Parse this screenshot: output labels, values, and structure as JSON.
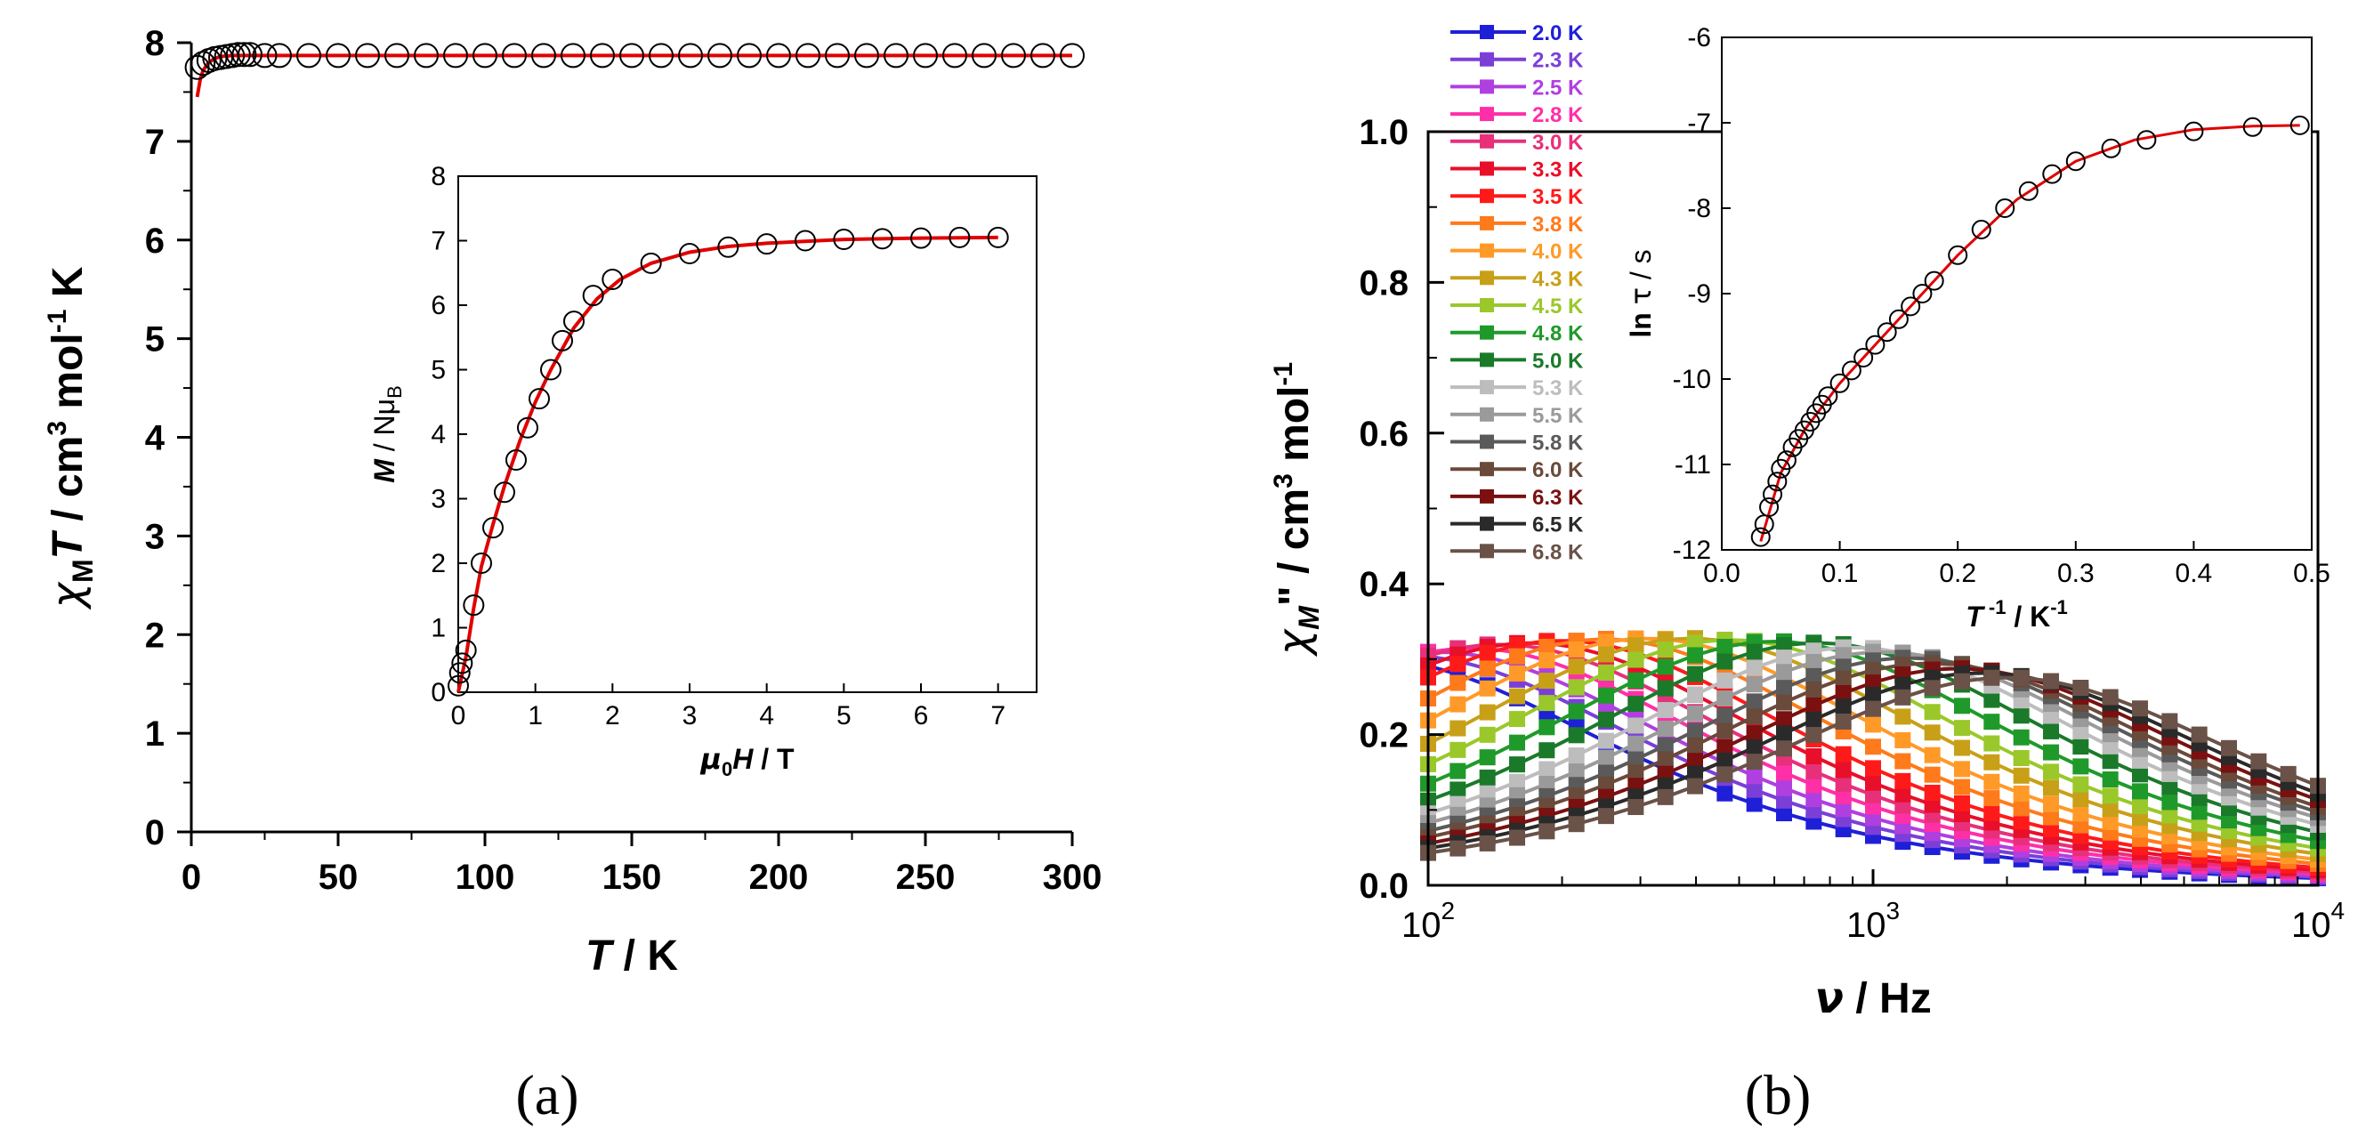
{
  "chart_data": [
    {
      "panel": "(a)",
      "type": "scatter",
      "xlabel": "T / K",
      "ylabel": "χ_M T / cm^3 mol^-1 K",
      "xlim": [
        0,
        300
      ],
      "ylim": [
        0,
        8
      ],
      "xticks": [
        "0",
        "50",
        "100",
        "150",
        "200",
        "250",
        "300"
      ],
      "yticks": [
        "0",
        "1",
        "2",
        "3",
        "4",
        "5",
        "6",
        "7",
        "8"
      ],
      "markers": "open circles (black)",
      "fit": "red line",
      "points": {
        "x": [
          2,
          4,
          6,
          8,
          10,
          12,
          14,
          16,
          18,
          20,
          25,
          30,
          40,
          50,
          60,
          70,
          80,
          90,
          100,
          110,
          120,
          130,
          140,
          150,
          160,
          170,
          180,
          190,
          200,
          210,
          220,
          230,
          240,
          250,
          260,
          270,
          280,
          290,
          300
        ],
        "y": [
          7.75,
          7.79,
          7.82,
          7.84,
          7.85,
          7.86,
          7.87,
          7.88,
          7.88,
          7.88,
          7.87,
          7.87,
          7.87,
          7.87,
          7.87,
          7.87,
          7.87,
          7.87,
          7.87,
          7.87,
          7.87,
          7.87,
          7.87,
          7.87,
          7.87,
          7.87,
          7.87,
          7.87,
          7.87,
          7.87,
          7.87,
          7.87,
          7.87,
          7.87,
          7.87,
          7.87,
          7.87,
          7.87,
          7.87
        ]
      },
      "fit_line": {
        "x": [
          2,
          3,
          4,
          6,
          8,
          10,
          14,
          20,
          30,
          50,
          100,
          150,
          200,
          250,
          300
        ],
        "y": [
          7.45,
          7.62,
          7.72,
          7.8,
          7.84,
          7.86,
          7.87,
          7.87,
          7.87,
          7.87,
          7.87,
          7.87,
          7.87,
          7.87,
          7.87
        ]
      },
      "inset": {
        "type": "scatter",
        "xlabel": "μ0H / T",
        "ylabel": "M / NμB",
        "xlim": [
          0,
          7.5
        ],
        "ylim": [
          0,
          8
        ],
        "xticks": [
          "0",
          "1",
          "2",
          "3",
          "4",
          "5",
          "6",
          "7"
        ],
        "yticks": [
          "0",
          "1",
          "2",
          "3",
          "4",
          "5",
          "6",
          "7",
          "8"
        ],
        "points": {
          "x": [
            0.0,
            0.02,
            0.05,
            0.1,
            0.2,
            0.3,
            0.45,
            0.6,
            0.75,
            0.9,
            1.05,
            1.2,
            1.35,
            1.5,
            1.75,
            2.0,
            2.5,
            3.0,
            3.5,
            4.0,
            4.5,
            5.0,
            5.5,
            6.0,
            6.5,
            7.0
          ],
          "y": [
            0.1,
            0.3,
            0.45,
            0.65,
            1.35,
            2.0,
            2.55,
            3.1,
            3.6,
            4.1,
            4.55,
            5.0,
            5.45,
            5.75,
            6.15,
            6.4,
            6.65,
            6.8,
            6.9,
            6.95,
            7.0,
            7.02,
            7.03,
            7.04,
            7.05,
            7.05
          ]
        },
        "fit_line": {
          "x": [
            0,
            0.1,
            0.2,
            0.3,
            0.45,
            0.6,
            0.8,
            1.0,
            1.2,
            1.5,
            1.8,
            2.1,
            2.5,
            3.0,
            3.5,
            4.0,
            5.0,
            6.0,
            7.0
          ],
          "y": [
            0,
            0.55,
            1.3,
            1.95,
            2.6,
            3.2,
            3.9,
            4.5,
            5.0,
            5.65,
            6.1,
            6.4,
            6.65,
            6.82,
            6.91,
            6.96,
            7.02,
            7.04,
            7.05
          ]
        }
      }
    },
    {
      "panel": "(b)",
      "type": "line",
      "xlabel": "ν / Hz",
      "ylabel": "χ_M'' / cm^3 mol^-1",
      "xscale": "log",
      "xlim": [
        100,
        10000
      ],
      "ylim": [
        0,
        1.0
      ],
      "xtick_labels": [
        {
          "base": "10",
          "exp": "2"
        },
        {
          "base": "10",
          "exp": "3"
        },
        {
          "base": "10",
          "exp": "4"
        }
      ],
      "yticks": [
        "0.0",
        "0.2",
        "0.4",
        "0.6",
        "0.8",
        "1.0"
      ],
      "legend": [
        "2.0 K",
        "2.3 K",
        "2.5 K",
        "2.8 K",
        "3.0 K",
        "3.3 K",
        "3.5 K",
        "3.8 K",
        "4.0 K",
        "4.3 K",
        "4.5 K",
        "4.8 K",
        "5.0 K",
        "5.3 K",
        "5.5 K",
        "5.8 K",
        "6.0 K",
        "6.3 K",
        "6.5 K",
        "6.8 K"
      ],
      "colors": [
        "#1f1fd8",
        "#7b3fd8",
        "#b03fe0",
        "#ff2fa8",
        "#e8307a",
        "#e80f2a",
        "#ff1a1a",
        "#ff7a1a",
        "#ff9a28",
        "#c8a018",
        "#9ac82a",
        "#1f9a2a",
        "#1a7a2a",
        "#bdbdbd",
        "#9a9a9a",
        "#5a5a5a",
        "#6a4a3a",
        "#7a1010",
        "#2a2a2a",
        "#6a5248"
      ],
      "series_params": [
        {
          "name": "2.0 K",
          "peak_hz": 75,
          "amplitude": 0.3
        },
        {
          "name": "2.3 K",
          "peak_hz": 90,
          "amplitude": 0.305
        },
        {
          "name": "2.5 K",
          "peak_hz": 105,
          "amplitude": 0.31
        },
        {
          "name": "2.8 K",
          "peak_hz": 125,
          "amplitude": 0.315
        },
        {
          "name": "3.0 K",
          "peak_hz": 145,
          "amplitude": 0.32
        },
        {
          "name": "3.3 K",
          "peak_hz": 170,
          "amplitude": 0.322
        },
        {
          "name": "3.5 K",
          "peak_hz": 200,
          "amplitude": 0.325
        },
        {
          "name": "3.8 K",
          "peak_hz": 250,
          "amplitude": 0.327
        },
        {
          "name": "4.0 K",
          "peak_hz": 310,
          "amplitude": 0.328
        },
        {
          "name": "4.3 K",
          "peak_hz": 390,
          "amplitude": 0.328
        },
        {
          "name": "4.5 K",
          "peak_hz": 480,
          "amplitude": 0.326
        },
        {
          "name": "4.8 K",
          "peak_hz": 600,
          "amplitude": 0.324
        },
        {
          "name": "5.0 K",
          "peak_hz": 750,
          "amplitude": 0.322
        },
        {
          "name": "5.3 K",
          "peak_hz": 900,
          "amplitude": 0.316
        },
        {
          "name": "5.5 K",
          "peak_hz": 1050,
          "amplitude": 0.31
        },
        {
          "name": "5.8 K",
          "peak_hz": 1200,
          "amplitude": 0.302
        },
        {
          "name": "6.0 K",
          "peak_hz": 1350,
          "amplitude": 0.295
        },
        {
          "name": "6.3 K",
          "peak_hz": 1550,
          "amplitude": 0.288
        },
        {
          "name": "6.5 K",
          "peak_hz": 1750,
          "amplitude": 0.282
        },
        {
          "name": "6.8 K",
          "peak_hz": 2000,
          "amplitude": 0.276
        }
      ],
      "inset": {
        "type": "scatter",
        "xlabel": "T^-1 / K^-1",
        "ylabel": "ln τ / s",
        "xlim": [
          0,
          0.5
        ],
        "ylim": [
          -12,
          -6
        ],
        "xticks": [
          "0.0",
          "0.1",
          "0.2",
          "0.3",
          "0.4",
          "0.5"
        ],
        "yticks": [
          "-12",
          "-11",
          "-10",
          "-9",
          "-8",
          "-7",
          "-6"
        ],
        "points": {
          "x": [
            0.033,
            0.036,
            0.04,
            0.043,
            0.047,
            0.05,
            0.055,
            0.06,
            0.065,
            0.07,
            0.075,
            0.08,
            0.085,
            0.09,
            0.1,
            0.11,
            0.12,
            0.13,
            0.14,
            0.15,
            0.16,
            0.17,
            0.18,
            0.2,
            0.22,
            0.24,
            0.26,
            0.28,
            0.3,
            0.33,
            0.36,
            0.4,
            0.45,
            0.49
          ],
          "y": [
            -11.85,
            -11.7,
            -11.5,
            -11.35,
            -11.2,
            -11.05,
            -10.95,
            -10.8,
            -10.7,
            -10.6,
            -10.5,
            -10.4,
            -10.3,
            -10.2,
            -10.05,
            -9.9,
            -9.75,
            -9.6,
            -9.45,
            -9.3,
            -9.15,
            -9.0,
            -8.85,
            -8.55,
            -8.25,
            -8.0,
            -7.8,
            -7.6,
            -7.45,
            -7.3,
            -7.2,
            -7.1,
            -7.05,
            -7.03
          ]
        },
        "fit_line": {
          "x": [
            0.033,
            0.05,
            0.07,
            0.1,
            0.13,
            0.16,
            0.2,
            0.25,
            0.3,
            0.35,
            0.4,
            0.45,
            0.49
          ],
          "y": [
            -11.9,
            -11.1,
            -10.6,
            -10.05,
            -9.6,
            -9.15,
            -8.55,
            -7.9,
            -7.45,
            -7.2,
            -7.08,
            -7.04,
            -7.03
          ]
        }
      }
    }
  ],
  "panel_labels": {
    "a": "(a)",
    "b": "(b)"
  },
  "colors": {
    "marker_stroke": "#000000",
    "fit_line": "#e00000",
    "axis": "#000000"
  }
}
